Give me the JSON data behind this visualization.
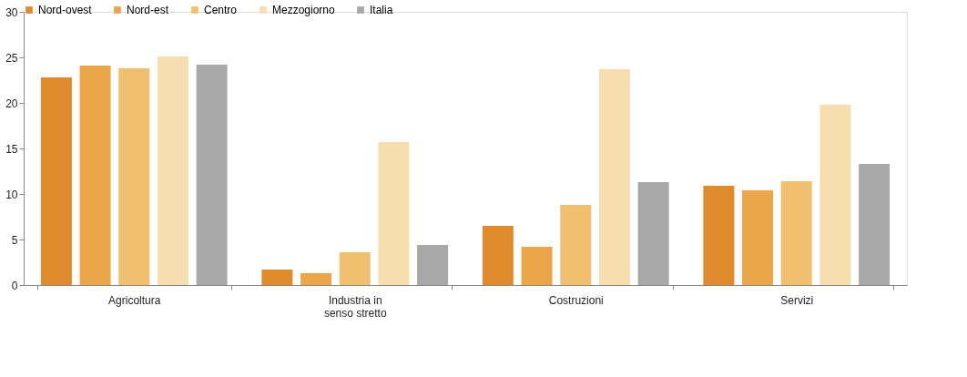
{
  "chart_data": {
    "type": "bar",
    "categories": [
      "Agricoltura",
      "Industria in senso stretto",
      "Costruzioni",
      "Servizi"
    ],
    "series": [
      {
        "name": "Nord-ovest",
        "color": "#e08a2e",
        "values": [
          22.8,
          1.7,
          6.5,
          10.9
        ]
      },
      {
        "name": "Nord-est",
        "color": "#eca64a",
        "values": [
          24.1,
          1.3,
          4.2,
          10.4
        ]
      },
      {
        "name": "Centro",
        "color": "#f0c070",
        "values": [
          23.8,
          3.6,
          8.8,
          11.4
        ]
      },
      {
        "name": "Mezzogiorno",
        "color": "#f7deb0",
        "values": [
          25.1,
          15.7,
          23.7,
          19.8
        ]
      },
      {
        "name": "Italia",
        "color": "#a8a8a8",
        "values": [
          24.2,
          4.4,
          11.3,
          13.3
        ]
      }
    ],
    "ylim": [
      0,
      30
    ],
    "yticks": [
      0,
      5,
      10,
      15,
      20,
      25,
      30
    ],
    "grid": false,
    "legend": "top"
  }
}
